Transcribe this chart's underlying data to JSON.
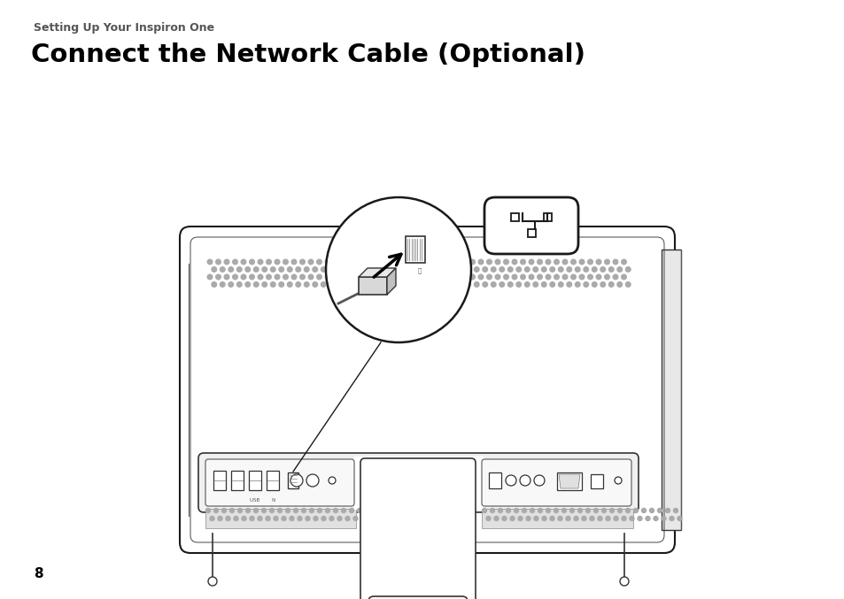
{
  "background_color": "#ffffff",
  "subtitle_text": "Setting Up Your Inspiron One",
  "subtitle_color": "#555555",
  "subtitle_fontsize": 9,
  "title_text": "Connect the Network Cable (Optional)",
  "title_color": "#000000",
  "title_fontsize": 21,
  "page_number": "8"
}
